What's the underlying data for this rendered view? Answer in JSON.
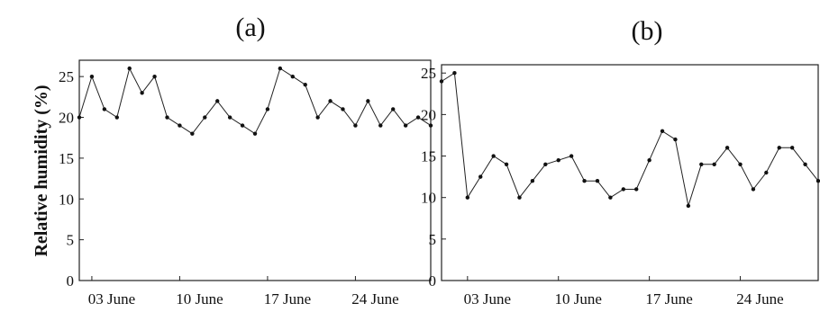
{
  "chart_data": [
    {
      "panel_label": "(a)",
      "type": "line",
      "ylabel": "Relative humidity (%)",
      "x_tick_labels": [
        "03 June",
        "10 June",
        "17 June",
        "24 June"
      ],
      "x_tick_days": [
        3,
        10,
        17,
        24
      ],
      "xlim": [
        2,
        30
      ],
      "ylim": [
        0,
        27
      ],
      "y_ticks": [
        0,
        5,
        10,
        15,
        20,
        25
      ],
      "grid": false,
      "series": [
        {
          "x": [
            2,
            3,
            4,
            5,
            6,
            7,
            8,
            9,
            10,
            11,
            12,
            13,
            14,
            15,
            16,
            17,
            18,
            19,
            20,
            21,
            22,
            23,
            24,
            25,
            26,
            27,
            28,
            29,
            30
          ],
          "values": [
            20,
            25,
            21,
            20,
            26,
            23,
            25,
            20,
            19,
            18,
            20,
            22,
            20,
            19,
            18,
            21,
            26,
            25,
            24,
            20,
            22,
            21,
            19,
            22,
            19,
            21,
            19,
            20,
            19
          ]
        }
      ]
    },
    {
      "panel_label": "(b)",
      "type": "line",
      "ylabel": "",
      "x_tick_labels": [
        "03 June",
        "10 June",
        "17 June",
        "24 June"
      ],
      "x_tick_days": [
        3,
        10,
        17,
        24
      ],
      "xlim": [
        1,
        30
      ],
      "ylim": [
        0,
        26
      ],
      "y_ticks": [
        0,
        5,
        10,
        15,
        20,
        25
      ],
      "grid": false,
      "series": [
        {
          "x": [
            1,
            2,
            3,
            4,
            5,
            6,
            7,
            8,
            9,
            10,
            11,
            12,
            13,
            14,
            15,
            16,
            17,
            18,
            19,
            20,
            21,
            22,
            23,
            24,
            25,
            26,
            27,
            28,
            29,
            30
          ],
          "values": [
            24,
            25,
            10,
            12.5,
            15,
            14,
            10,
            12,
            14,
            14.5,
            15,
            12,
            12,
            10,
            11,
            11,
            14.5,
            18,
            17,
            9,
            14,
            14,
            16,
            14,
            11,
            13,
            16,
            16,
            14,
            12
          ]
        }
      ]
    }
  ]
}
